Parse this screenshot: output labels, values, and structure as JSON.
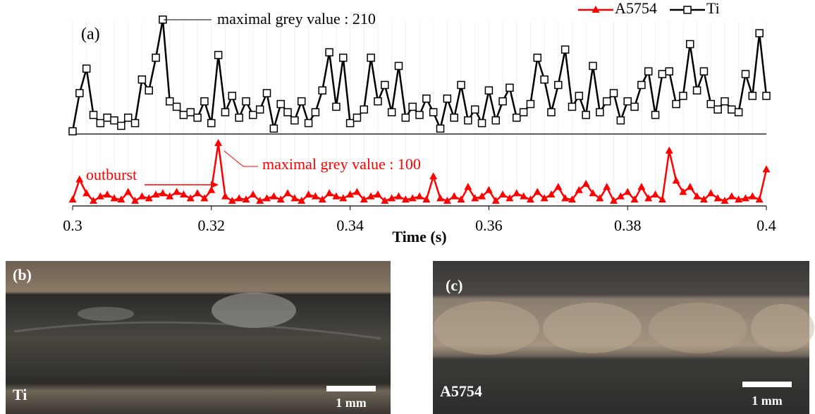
{
  "chart_data": {
    "type": "line",
    "panel_label": "(a)",
    "xlabel": "Time (s)",
    "x": [
      0.3,
      0.301,
      0.302,
      0.303,
      0.304,
      0.305,
      0.306,
      0.307,
      0.308,
      0.309,
      0.31,
      0.311,
      0.312,
      0.313,
      0.314,
      0.315,
      0.316,
      0.317,
      0.318,
      0.319,
      0.32,
      0.321,
      0.322,
      0.323,
      0.324,
      0.325,
      0.326,
      0.327,
      0.328,
      0.329,
      0.33,
      0.331,
      0.332,
      0.333,
      0.334,
      0.335,
      0.336,
      0.337,
      0.338,
      0.339,
      0.34,
      0.341,
      0.342,
      0.343,
      0.344,
      0.345,
      0.346,
      0.347,
      0.348,
      0.349,
      0.35,
      0.351,
      0.352,
      0.353,
      0.354,
      0.355,
      0.356,
      0.357,
      0.358,
      0.359,
      0.36,
      0.361,
      0.362,
      0.363,
      0.364,
      0.365,
      0.366,
      0.367,
      0.368,
      0.369,
      0.37,
      0.371,
      0.372,
      0.373,
      0.374,
      0.375,
      0.376,
      0.377,
      0.378,
      0.379,
      0.38,
      0.381,
      0.382,
      0.383,
      0.384,
      0.385,
      0.386,
      0.387,
      0.388,
      0.389,
      0.39,
      0.391,
      0.392,
      0.393,
      0.394,
      0.395,
      0.396,
      0.397,
      0.398,
      0.399,
      0.4
    ],
    "xlim": [
      0.3,
      0.4
    ],
    "xticks": [
      0.3,
      0.32,
      0.34,
      0.36,
      0.38,
      0.4
    ],
    "ylim": [
      -132,
      233
    ],
    "y2lim": [
      0,
      317
    ],
    "legend": "top-right",
    "series": [
      {
        "name": "A5754",
        "color": "#ff0000",
        "marker": "triangle",
        "axis": "y2",
        "values": [
          10,
          42,
          20,
          8,
          15,
          18,
          12,
          10,
          22,
          8,
          15,
          12,
          18,
          20,
          15,
          22,
          18,
          12,
          20,
          12,
          25,
          100,
          15,
          8,
          12,
          10,
          18,
          8,
          12,
          15,
          10,
          20,
          12,
          8,
          18,
          15,
          10,
          20,
          15,
          12,
          18,
          22,
          10,
          15,
          18,
          8,
          12,
          15,
          10,
          12,
          15,
          10,
          47,
          12,
          8,
          15,
          10,
          30,
          12,
          15,
          25,
          8,
          18,
          12,
          20,
          15,
          10,
          22,
          12,
          18,
          30,
          12,
          10,
          25,
          35,
          20,
          12,
          30,
          8,
          15,
          22,
          10,
          30,
          12,
          18,
          10,
          88,
          40,
          22,
          30,
          15,
          10,
          20,
          12,
          8,
          15,
          10,
          12,
          15,
          10,
          58
        ]
      },
      {
        "name": "Ti",
        "color": "#000000",
        "marker": "square",
        "values": [
          5,
          75,
          120,
          35,
          20,
          30,
          25,
          15,
          30,
          20,
          100,
          80,
          140,
          210,
          60,
          50,
          35,
          40,
          30,
          60,
          20,
          145,
          40,
          70,
          30,
          60,
          35,
          45,
          75,
          10,
          55,
          40,
          25,
          60,
          20,
          40,
          80,
          150,
          50,
          140,
          20,
          30,
          45,
          140,
          60,
          90,
          40,
          125,
          30,
          50,
          35,
          65,
          40,
          10,
          65,
          30,
          90,
          25,
          45,
          20,
          80,
          25,
          60,
          85,
          30,
          40,
          55,
          140,
          100,
          40,
          90,
          155,
          50,
          70,
          35,
          125,
          40,
          60,
          75,
          25,
          60,
          50,
          90,
          115,
          35,
          110,
          115,
          55,
          70,
          165,
          80,
          115,
          55,
          45,
          60,
          45,
          40,
          110,
          70,
          185,
          70
        ]
      }
    ],
    "annotations": [
      {
        "text": "maximal grey value : 210",
        "color": "#000000"
      },
      {
        "text": "maximal grey value : 100",
        "color": "#ff0000"
      },
      {
        "text": "outburst",
        "color": "#ff0000"
      }
    ]
  },
  "panels": [
    {
      "label": "(b)",
      "sample": "Ti",
      "scale": "1 mm"
    },
    {
      "label": "(c)",
      "sample": "A5754",
      "scale": "1 mm"
    }
  ]
}
